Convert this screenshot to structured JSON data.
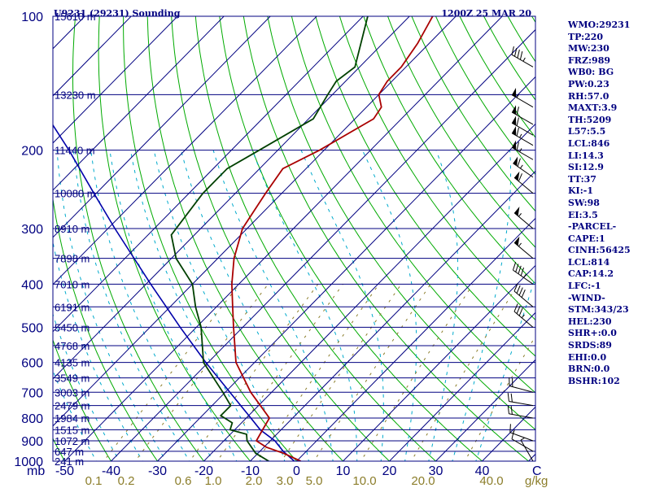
{
  "header": {
    "title": "U9231 (29231) Sounding",
    "time": "1200Z 25 MAR 20"
  },
  "sidebar": [
    "WMO:29231",
    "TP:220",
    "MW:230",
    "FRZ:989",
    "WB0: BG",
    "PW:0.23",
    "RH:57.0",
    "MAXT:3.9",
    "TH:5209",
    "L57:5.5",
    "LCL:846",
    "LI:14.3",
    "SI:12.9",
    "TT:37",
    "KI:-1",
    "SW:98",
    "EI:3.5",
    "-PARCEL-",
    "CAPE:1",
    "CINH:56425",
    "LCL:814",
    "CAP:14.2",
    "LFC:-1",
    "-WIND-",
    "STM:343/23",
    "HEL:230",
    "SHR+:0.0",
    "SRDS:89",
    "EHI:0.0",
    "BRN:0.0",
    "BSHR:102"
  ],
  "colors": {
    "frame": "#000080",
    "temperature": "#aa0000",
    "dewpoint": "#004000",
    "parcel": "#0000aa",
    "dry_adiabat": "#00aa00",
    "moist_adiabat": "#00aacc",
    "mixing_ratio": "#8b7d2a",
    "isotherm": "#000080"
  },
  "chart_data": {
    "type": "skew-t",
    "pressure_axis_label": "mb",
    "pressure_ticks": [
      100,
      200,
      300,
      400,
      500,
      600,
      700,
      800,
      900,
      1000
    ],
    "temperature_ticks": [
      "-50",
      "-40",
      "-30",
      "-20",
      "-10",
      "0",
      "10",
      "20",
      "30",
      "40"
    ],
    "temperature_axis_end_label": "C",
    "mixing_ratio_ticks": [
      "0.1",
      "0.2",
      "0.6",
      "1.0",
      "2.0",
      "3.0",
      "5.0",
      "10.0",
      "20.0",
      "40.0"
    ],
    "mixing_ratio_unit": "g/kg",
    "height_labels": [
      {
        "p": 100,
        "h": "15610 m"
      },
      {
        "p": 150,
        "h": "13230 m"
      },
      {
        "p": 200,
        "h": "11440 m"
      },
      {
        "p": 250,
        "h": "10080 m"
      },
      {
        "p": 300,
        "h": "8910 m"
      },
      {
        "p": 350,
        "h": "7898 m"
      },
      {
        "p": 400,
        "h": "7010 m"
      },
      {
        "p": 450,
        "h": "6191 m"
      },
      {
        "p": 500,
        "h": "5450 m"
      },
      {
        "p": 550,
        "h": "4768 m"
      },
      {
        "p": 600,
        "h": "4135 m"
      },
      {
        "p": 650,
        "h": "3549 m"
      },
      {
        "p": 700,
        "h": "3003 m"
      },
      {
        "p": 750,
        "h": "2479 m"
      },
      {
        "p": 800,
        "h": "1984 m"
      },
      {
        "p": 850,
        "h": "1515 m"
      },
      {
        "p": 900,
        "h": "1072 m"
      },
      {
        "p": 950,
        "h": "647 m"
      },
      {
        "p": 1000,
        "h": "241 m"
      }
    ],
    "temperature_profile": [
      {
        "p": 1000,
        "t": 0.9
      },
      {
        "p": 960,
        "t": -4.5
      },
      {
        "p": 930,
        "t": -9.5
      },
      {
        "p": 900,
        "t": -13.0
      },
      {
        "p": 850,
        "t": -14.0
      },
      {
        "p": 800,
        "t": -15.0
      },
      {
        "p": 750,
        "t": -19.6
      },
      {
        "p": 700,
        "t": -24.5
      },
      {
        "p": 600,
        "t": -34.0
      },
      {
        "p": 500,
        "t": -42.0
      },
      {
        "p": 450,
        "t": -46.5
      },
      {
        "p": 400,
        "t": -51.5
      },
      {
        "p": 350,
        "t": -56.5
      },
      {
        "p": 300,
        "t": -61.0
      },
      {
        "p": 250,
        "t": -63.5
      },
      {
        "p": 220,
        "t": -65.0
      },
      {
        "p": 200,
        "t": -61.0
      },
      {
        "p": 170,
        "t": -56.0
      },
      {
        "p": 160,
        "t": -56.8
      },
      {
        "p": 150,
        "t": -60.0
      },
      {
        "p": 140,
        "t": -61.0
      },
      {
        "p": 130,
        "t": -61.0
      },
      {
        "p": 115,
        "t": -62.5
      },
      {
        "p": 100,
        "t": -65.0
      }
    ],
    "dewpoint_profile": [
      {
        "p": 1000,
        "t": -6.0
      },
      {
        "p": 960,
        "t": -10.5
      },
      {
        "p": 900,
        "t": -15.0
      },
      {
        "p": 870,
        "t": -16.5
      },
      {
        "p": 850,
        "t": -21.0
      },
      {
        "p": 820,
        "t": -22.0
      },
      {
        "p": 790,
        "t": -26.0
      },
      {
        "p": 750,
        "t": -26.0
      },
      {
        "p": 700,
        "t": -30.5
      },
      {
        "p": 600,
        "t": -41.0
      },
      {
        "p": 500,
        "t": -49.0
      },
      {
        "p": 450,
        "t": -54.5
      },
      {
        "p": 400,
        "t": -60.0
      },
      {
        "p": 350,
        "t": -69.0
      },
      {
        "p": 310,
        "t": -75.0
      },
      {
        "p": 250,
        "t": -77.0
      },
      {
        "p": 220,
        "t": -77.0
      },
      {
        "p": 200,
        "t": -74.0
      },
      {
        "p": 170,
        "t": -69.0
      },
      {
        "p": 150,
        "t": -71.0
      },
      {
        "p": 140,
        "t": -72.0
      },
      {
        "p": 130,
        "t": -71.0
      },
      {
        "p": 100,
        "t": -79.0
      }
    ],
    "parcel_profile": [
      {
        "p": 1000,
        "t": -0.5
      },
      {
        "p": 950,
        "t": -5.0
      },
      {
        "p": 900,
        "t": -9.0
      },
      {
        "p": 850,
        "t": -14.5
      },
      {
        "p": 800,
        "t": -19.0
      },
      {
        "p": 700,
        "t": -29.0
      },
      {
        "p": 600,
        "t": -40.5
      },
      {
        "p": 500,
        "t": -53.5
      },
      {
        "p": 400,
        "t": -69.0
      },
      {
        "p": 300,
        "t": -88.5
      },
      {
        "p": 250,
        "t": -100.5
      },
      {
        "p": 200,
        "t": -115.0
      },
      {
        "p": 150,
        "t": -134.5
      },
      {
        "p": 120,
        "t": -149.5
      }
    ],
    "winds": [
      {
        "p": 1000,
        "dir": 330,
        "spd": 5
      },
      {
        "p": 950,
        "dir": 300,
        "spd": 10
      },
      {
        "p": 900,
        "dir": 290,
        "spd": 15
      },
      {
        "p": 800,
        "dir": 280,
        "spd": 20
      },
      {
        "p": 750,
        "dir": 280,
        "spd": 20
      },
      {
        "p": 700,
        "dir": 285,
        "spd": 20
      },
      {
        "p": 500,
        "dir": 310,
        "spd": 35
      },
      {
        "p": 450,
        "dir": 310,
        "spd": 40
      },
      {
        "p": 400,
        "dir": 305,
        "spd": 45
      },
      {
        "p": 350,
        "dir": 310,
        "spd": 55
      },
      {
        "p": 300,
        "dir": 310,
        "spd": 55
      },
      {
        "p": 250,
        "dir": 310,
        "spd": 60
      },
      {
        "p": 230,
        "dir": 305,
        "spd": 65
      },
      {
        "p": 210,
        "dir": 300,
        "spd": 65
      },
      {
        "p": 195,
        "dir": 300,
        "spd": 65
      },
      {
        "p": 185,
        "dir": 300,
        "spd": 60
      },
      {
        "p": 175,
        "dir": 300,
        "spd": 60
      },
      {
        "p": 160,
        "dir": 300,
        "spd": 55
      },
      {
        "p": 130,
        "dir": 300,
        "spd": 45
      }
    ]
  }
}
